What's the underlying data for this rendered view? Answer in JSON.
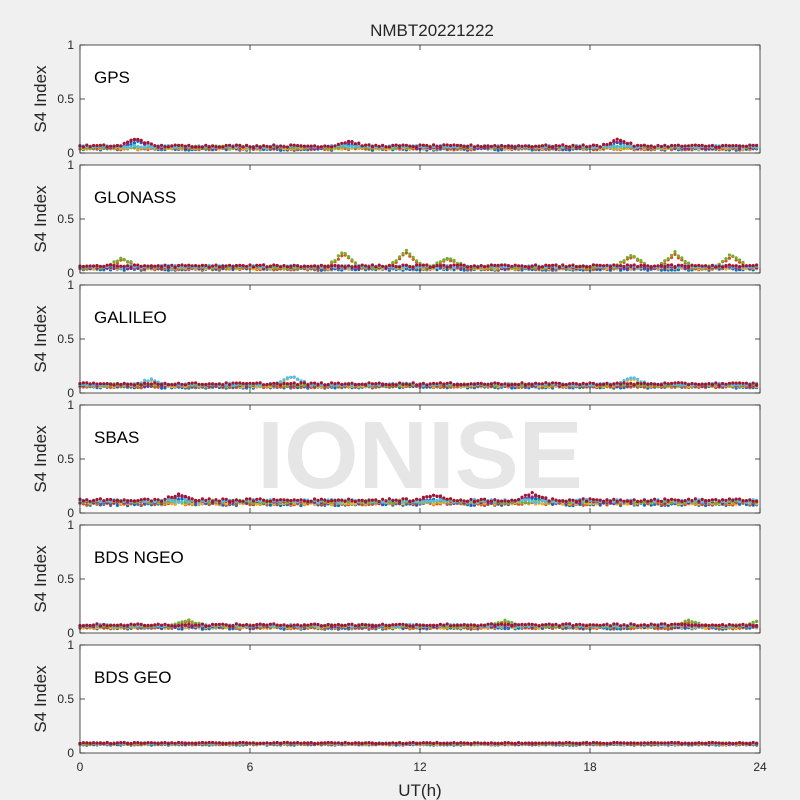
{
  "watermark": "IONISE",
  "chart_data": {
    "type": "scatter",
    "title": "NMBT20221222",
    "xlabel": "UT(h)",
    "ylabel": "S4 Index",
    "xlim": [
      0,
      24
    ],
    "ylim": [
      0,
      1
    ],
    "xticks": [
      0,
      6,
      12,
      18,
      24
    ],
    "yticks": [
      0,
      0.5,
      1
    ],
    "grid": false,
    "legend": "none",
    "series_colors": [
      "#0072bd",
      "#d95319",
      "#edb120",
      "#7e2f8e",
      "#77ac30",
      "#4dbeee",
      "#a2142f"
    ],
    "panels": [
      {
        "label": "GPS",
        "baseline": 0.05,
        "spread": 0.02,
        "features": [
          [
            2.0,
            0.13
          ],
          [
            9.5,
            0.1
          ],
          [
            19.0,
            0.12
          ]
        ]
      },
      {
        "label": "GLONASS",
        "baseline": 0.05,
        "spread": 0.02,
        "features": [
          [
            1.5,
            0.14
          ],
          [
            9.3,
            0.2
          ],
          [
            11.5,
            0.22
          ],
          [
            13.0,
            0.15
          ],
          [
            19.5,
            0.18
          ],
          [
            21.0,
            0.2
          ],
          [
            23.0,
            0.18
          ]
        ]
      },
      {
        "label": "GALILEO",
        "baseline": 0.07,
        "spread": 0.02,
        "features": [
          [
            2.5,
            0.12
          ],
          [
            7.5,
            0.16
          ],
          [
            19.5,
            0.14
          ]
        ]
      },
      {
        "label": "SBAS",
        "baseline": 0.1,
        "spread": 0.025,
        "features": [
          [
            3.5,
            0.16
          ],
          [
            12.5,
            0.16
          ],
          [
            16.0,
            0.17
          ]
        ]
      },
      {
        "label": "BDS NGEO",
        "baseline": 0.06,
        "spread": 0.02,
        "features": [
          [
            3.8,
            0.12
          ],
          [
            15.0,
            0.11
          ],
          [
            21.5,
            0.12
          ],
          [
            24.0,
            0.13
          ]
        ]
      },
      {
        "label": "BDS GEO",
        "baseline": 0.085,
        "spread": 0.01,
        "features": []
      }
    ]
  }
}
